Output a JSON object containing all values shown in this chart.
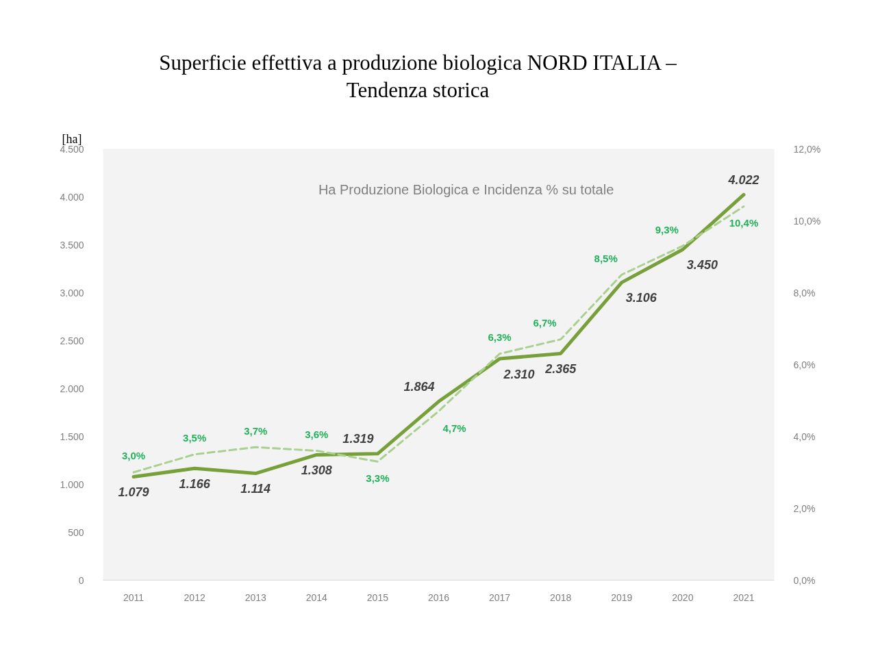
{
  "chart_data": {
    "type": "line",
    "title": "Superficie effettiva a produzione biologica NORD ITALIA – Tendenza storica",
    "subtitle": "Ha Produzione Biologica e Incidenza % su totale",
    "ylabel": "[ha]",
    "categories": [
      "2011",
      "2012",
      "2013",
      "2014",
      "2015",
      "2016",
      "2017",
      "2018",
      "2019",
      "2020",
      "2021"
    ],
    "ylim": [
      0,
      4500
    ],
    "yticks": [
      0,
      500,
      {
        "value": 1000,
        "label": "1.000"
      },
      {
        "value": 1500,
        "label": "1.500"
      },
      {
        "value": 2000,
        "label": "2.000"
      },
      {
        "value": 2500,
        "label": "2.500"
      },
      {
        "value": 3000,
        "label": "3.000"
      },
      {
        "value": 3500,
        "label": "3.500"
      },
      {
        "value": 4000,
        "label": "4.000"
      },
      {
        "value": 4500,
        "label": "4.500"
      }
    ],
    "y2lim": [
      0,
      12
    ],
    "y2ticks": [
      {
        "value": 0,
        "label": "0,0%"
      },
      {
        "value": 2,
        "label": "2,0%"
      },
      {
        "value": 4,
        "label": "4,0%"
      },
      {
        "value": 6,
        "label": "6,0%"
      },
      {
        "value": 8,
        "label": "8,0%"
      },
      {
        "value": 10,
        "label": "10,0%"
      },
      {
        "value": 12,
        "label": "12,0%"
      }
    ],
    "grid": false,
    "series": [
      {
        "color": "#77a03b",
        "line_style": "solid",
        "values": [
          1079,
          1166,
          1114,
          1308,
          1319,
          1864,
          2310,
          2365,
          3106,
          3450,
          4022
        ],
        "value_labels": [
          "1.079",
          "1.166",
          "1.114",
          "1.308",
          "1.319",
          "1.864",
          "2.310",
          "2.365",
          "3.106",
          "3.450",
          "4.022"
        ]
      },
      {
        "color": "#a9d08e",
        "line_style": "dashed",
        "axis": "y2",
        "values": [
          3.0,
          3.5,
          3.7,
          3.6,
          3.3,
          4.7,
          6.3,
          6.7,
          8.5,
          9.3,
          10.4
        ],
        "value_labels": [
          "3,0%",
          "3,5%",
          "3,7%",
          "3,6%",
          "3,3%",
          "4,7%",
          "6,3%",
          "6,7%",
          "8,5%",
          "9,3%",
          "10,4%"
        ]
      }
    ]
  }
}
